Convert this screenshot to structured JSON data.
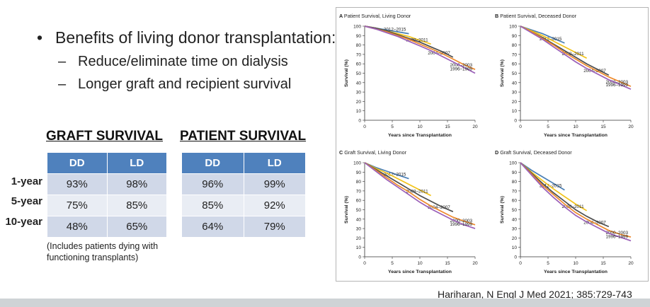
{
  "bullets": {
    "main": "Benefits of living donor transplantation:",
    "sub": [
      "Reduce/eliminate time on dialysis",
      "Longer graft and recipient survival"
    ]
  },
  "graft_table": {
    "title": "GRAFT SURVIVAL",
    "headers": [
      "DD",
      "LD"
    ],
    "rows": [
      {
        "label": "1-year",
        "values": [
          "93%",
          "98%"
        ]
      },
      {
        "label": "5-year",
        "values": [
          "75%",
          "85%"
        ]
      },
      {
        "label": "10-year",
        "values": [
          "48%",
          "65%"
        ]
      }
    ]
  },
  "patient_table": {
    "title": "PATIENT SURVIVAL",
    "headers": [
      "DD",
      "LD"
    ],
    "rows": [
      {
        "values": [
          "96%",
          "99%"
        ]
      },
      {
        "values": [
          "85%",
          "92%"
        ]
      },
      {
        "values": [
          "64%",
          "79%"
        ]
      }
    ]
  },
  "note": "(Includes patients dying with functioning transplants)",
  "citation": "Hariharan, N Engl J Med 2021; 385:729-743",
  "colors": {
    "2012-2015": "#4a7fb5",
    "2008-2011": "#f2c318",
    "2004-2007": "#4d4d4d",
    "2000-2003": "#ee8a2c",
    "1996-1999": "#9a5fb8",
    "table_header": "#4f81bd"
  },
  "chart_data": [
    {
      "type": "line",
      "panel": "A",
      "title": "Patient Survival, Living Donor",
      "xlabel": "Years since Transplantation",
      "ylabel": "Survival (%)",
      "xlim": [
        0,
        20
      ],
      "ylim": [
        0,
        100
      ],
      "xticks": [
        0,
        5,
        10,
        15,
        20
      ],
      "yticks": [
        0,
        10,
        20,
        30,
        40,
        50,
        60,
        70,
        80,
        90,
        100
      ],
      "series": [
        {
          "name": "2012–2015",
          "x": [
            0,
            2,
            4,
            6,
            8
          ],
          "y": [
            100,
            98,
            96,
            94,
            92
          ]
        },
        {
          "name": "2008–2011",
          "x": [
            0,
            2,
            4,
            6,
            8,
            10,
            12
          ],
          "y": [
            100,
            98,
            95,
            92,
            89,
            85,
            81
          ]
        },
        {
          "name": "2004–2007",
          "x": [
            0,
            2,
            4,
            6,
            8,
            10,
            12,
            14,
            16
          ],
          "y": [
            100,
            98,
            95,
            91,
            87,
            83,
            78,
            73,
            67
          ]
        },
        {
          "name": "2000–2003",
          "x": [
            0,
            2,
            4,
            6,
            8,
            10,
            12,
            14,
            16,
            18,
            20
          ],
          "y": [
            100,
            97,
            94,
            90,
            86,
            81,
            76,
            71,
            65,
            59,
            54
          ]
        },
        {
          "name": "1996–1999",
          "x": [
            0,
            2,
            4,
            6,
            8,
            10,
            12,
            14,
            16,
            18,
            20
          ],
          "y": [
            100,
            97,
            93,
            89,
            84,
            79,
            74,
            68,
            62,
            56,
            50
          ]
        }
      ]
    },
    {
      "type": "line",
      "panel": "B",
      "title": "Patient Survival, Deceased Donor",
      "xlabel": "Years since Transplantation",
      "ylabel": "Survival (%)",
      "xlim": [
        0,
        20
      ],
      "ylim": [
        0,
        100
      ],
      "xticks": [
        0,
        5,
        10,
        15,
        20
      ],
      "yticks": [
        0,
        10,
        20,
        30,
        40,
        50,
        60,
        70,
        80,
        90,
        100
      ],
      "series": [
        {
          "name": "2012–2015",
          "x": [
            0,
            2,
            4,
            6,
            8
          ],
          "y": [
            100,
            96,
            92,
            87,
            82
          ]
        },
        {
          "name": "2008–2011",
          "x": [
            0,
            2,
            4,
            6,
            8,
            10,
            12
          ],
          "y": [
            100,
            95,
            90,
            84,
            78,
            72,
            66
          ]
        },
        {
          "name": "2004–2007",
          "x": [
            0,
            2,
            4,
            6,
            8,
            10,
            12,
            14,
            16
          ],
          "y": [
            100,
            94,
            88,
            81,
            74,
            67,
            60,
            54,
            48
          ]
        },
        {
          "name": "2000–2003",
          "x": [
            0,
            2,
            4,
            6,
            8,
            10,
            12,
            14,
            16,
            18,
            20
          ],
          "y": [
            100,
            94,
            87,
            80,
            72,
            65,
            58,
            52,
            46,
            41,
            36
          ]
        },
        {
          "name": "1996–1999",
          "x": [
            0,
            2,
            4,
            6,
            8,
            10,
            12,
            14,
            16,
            18,
            20
          ],
          "y": [
            100,
            93,
            86,
            78,
            70,
            62,
            55,
            49,
            43,
            38,
            33
          ]
        }
      ]
    },
    {
      "type": "line",
      "panel": "C",
      "title": "Graft Survival, Living Donor",
      "xlabel": "Years since Transplantation",
      "ylabel": "Survival (%)",
      "xlim": [
        0,
        20
      ],
      "ylim": [
        0,
        100
      ],
      "xticks": [
        0,
        5,
        10,
        15,
        20
      ],
      "yticks": [
        0,
        10,
        20,
        30,
        40,
        50,
        60,
        70,
        80,
        90,
        100
      ],
      "series": [
        {
          "name": "2012–2015",
          "x": [
            0,
            2,
            4,
            6,
            8
          ],
          "y": [
            100,
            95,
            91,
            87,
            83
          ]
        },
        {
          "name": "2008–2011",
          "x": [
            0,
            2,
            4,
            6,
            8,
            10,
            12
          ],
          "y": [
            100,
            94,
            89,
            83,
            77,
            71,
            65
          ]
        },
        {
          "name": "2004–2007",
          "x": [
            0,
            2,
            4,
            6,
            8,
            10,
            12,
            14,
            16
          ],
          "y": [
            100,
            93,
            86,
            79,
            72,
            65,
            59,
            53,
            48
          ]
        },
        {
          "name": "2000–2003",
          "x": [
            0,
            2,
            4,
            6,
            8,
            10,
            12,
            14,
            16,
            18,
            20
          ],
          "y": [
            100,
            92,
            84,
            76,
            69,
            61,
            54,
            48,
            42,
            38,
            34
          ]
        },
        {
          "name": "1996–1999",
          "x": [
            0,
            2,
            4,
            6,
            8,
            10,
            12,
            14,
            16,
            18,
            20
          ],
          "y": [
            100,
            91,
            82,
            74,
            66,
            58,
            51,
            45,
            39,
            34,
            30
          ]
        }
      ]
    },
    {
      "type": "line",
      "panel": "D",
      "title": "Graft Survival, Deceased Donor",
      "xlabel": "Years since Transplantation",
      "ylabel": "Survival (%)",
      "xlim": [
        0,
        20
      ],
      "ylim": [
        0,
        100
      ],
      "xticks": [
        0,
        5,
        10,
        15,
        20
      ],
      "yticks": [
        0,
        10,
        20,
        30,
        40,
        50,
        60,
        70,
        80,
        90,
        100
      ],
      "series": [
        {
          "name": "2012–2015",
          "x": [
            0,
            2,
            4,
            6,
            8
          ],
          "y": [
            100,
            92,
            85,
            78,
            71
          ]
        },
        {
          "name": "2008–2011",
          "x": [
            0,
            2,
            4,
            6,
            8,
            10,
            12
          ],
          "y": [
            100,
            90,
            81,
            72,
            64,
            56,
            49
          ]
        },
        {
          "name": "2004–2007",
          "x": [
            0,
            2,
            4,
            6,
            8,
            10,
            12,
            14,
            16
          ],
          "y": [
            100,
            89,
            78,
            68,
            59,
            50,
            43,
            37,
            32
          ]
        },
        {
          "name": "2000–2003",
          "x": [
            0,
            2,
            4,
            6,
            8,
            10,
            12,
            14,
            16,
            18,
            20
          ],
          "y": [
            100,
            88,
            76,
            66,
            56,
            47,
            40,
            34,
            28,
            24,
            21
          ]
        },
        {
          "name": "1996–1999",
          "x": [
            0,
            2,
            4,
            6,
            8,
            10,
            12,
            14,
            16,
            18,
            20
          ],
          "y": [
            100,
            87,
            74,
            63,
            53,
            44,
            37,
            31,
            25,
            21,
            17
          ]
        }
      ]
    }
  ]
}
